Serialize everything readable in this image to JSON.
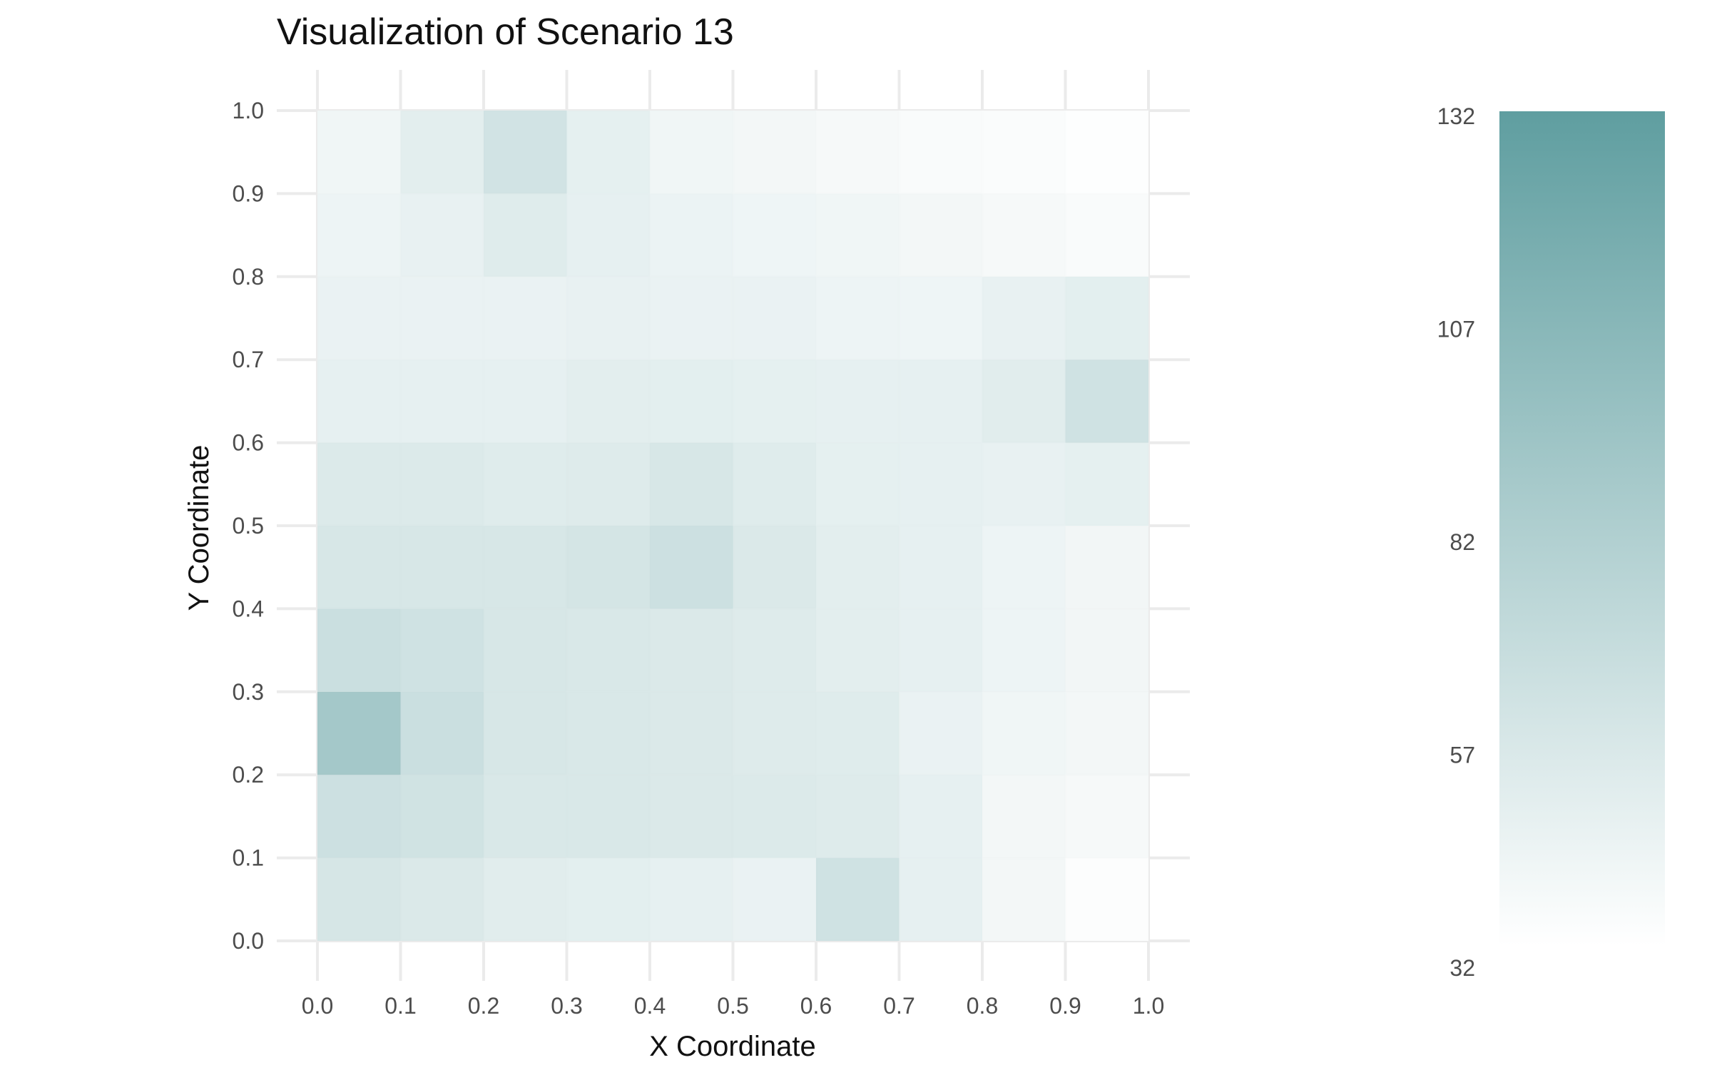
{
  "chart_data": {
    "type": "heatmap",
    "title": "Visualization of Scenario 13",
    "xlabel": "X Coordinate",
    "ylabel": "Y Coordinate",
    "xlim": [
      0.0,
      1.0
    ],
    "ylim": [
      0.0,
      1.0
    ],
    "grid": true,
    "x_ticks": [
      "0.0",
      "0.1",
      "0.2",
      "0.3",
      "0.4",
      "0.5",
      "0.6",
      "0.7",
      "0.8",
      "0.9",
      "1.0"
    ],
    "y_ticks": [
      "0.0",
      "0.1",
      "0.2",
      "0.3",
      "0.4",
      "0.5",
      "0.6",
      "0.7",
      "0.8",
      "0.9",
      "1.0"
    ],
    "bin_edges": [
      0.0,
      0.1,
      0.2,
      0.3,
      0.4,
      0.5,
      0.6,
      0.7,
      0.8,
      0.9,
      1.0
    ],
    "counts_rows_bottom_to_top": [
      [
        59,
        56,
        52,
        50,
        48,
        46,
        64,
        48,
        40,
        34
      ],
      [
        66,
        63,
        57,
        57,
        56,
        55,
        54,
        48,
        40,
        38
      ],
      [
        92,
        67,
        58,
        57,
        56,
        54,
        53,
        46,
        42,
        40
      ],
      [
        67,
        64,
        58,
        57,
        56,
        54,
        51,
        48,
        44,
        41
      ],
      [
        58,
        58,
        58,
        60,
        66,
        56,
        51,
        48,
        44,
        41
      ],
      [
        55,
        55,
        53,
        54,
        58,
        53,
        49,
        48,
        47,
        49
      ],
      [
        48,
        48,
        48,
        51,
        50,
        49,
        48,
        48,
        52,
        64
      ],
      [
        46,
        46,
        46,
        47,
        46,
        46,
        44,
        43,
        47,
        50
      ],
      [
        44,
        47,
        53,
        48,
        45,
        43,
        42,
        40,
        38,
        36
      ],
      [
        42,
        51,
        62,
        49,
        42,
        40,
        38,
        36,
        35,
        33
      ]
    ],
    "color_scale": {
      "min": 32,
      "max": 132,
      "ticks": [
        "132",
        "107",
        "82",
        "57",
        "32"
      ],
      "low_color": "#ffffff",
      "high_color": "#5f9ea0"
    }
  }
}
